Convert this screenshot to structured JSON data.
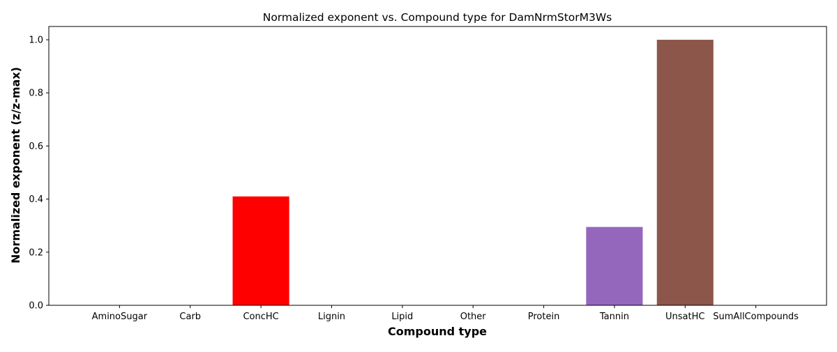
{
  "chart_data": {
    "type": "bar",
    "title": "Normalized exponent vs. Compound type for DamNrmStorM3Ws",
    "xlabel": "Compound type",
    "ylabel": "Normalized exponent (z/z-max)",
    "categories": [
      "AminoSugar",
      "Carb",
      "ConcHC",
      "Lignin",
      "Lipid",
      "Other",
      "Protein",
      "Tannin",
      "UnsatHC",
      "SumAllCompounds"
    ],
    "values": [
      0,
      0,
      0.41,
      0,
      0,
      0,
      0,
      0.295,
      1.0,
      0
    ],
    "bar_colors": [
      "#1f77b4",
      "#ff7f0e",
      "#ff0000",
      "#d62728",
      "#2ca02c",
      "#17becf",
      "#e377c2",
      "#9467bd",
      "#8c564b",
      "#7f7f7f"
    ],
    "ylim": [
      0,
      1.05
    ],
    "yticks": [
      0.0,
      0.2,
      0.4,
      0.6,
      0.8,
      1.0
    ],
    "ytick_labels": [
      "0.0",
      "0.2",
      "0.4",
      "0.6",
      "0.8",
      "1.0"
    ],
    "grid": false,
    "legend": "none"
  }
}
